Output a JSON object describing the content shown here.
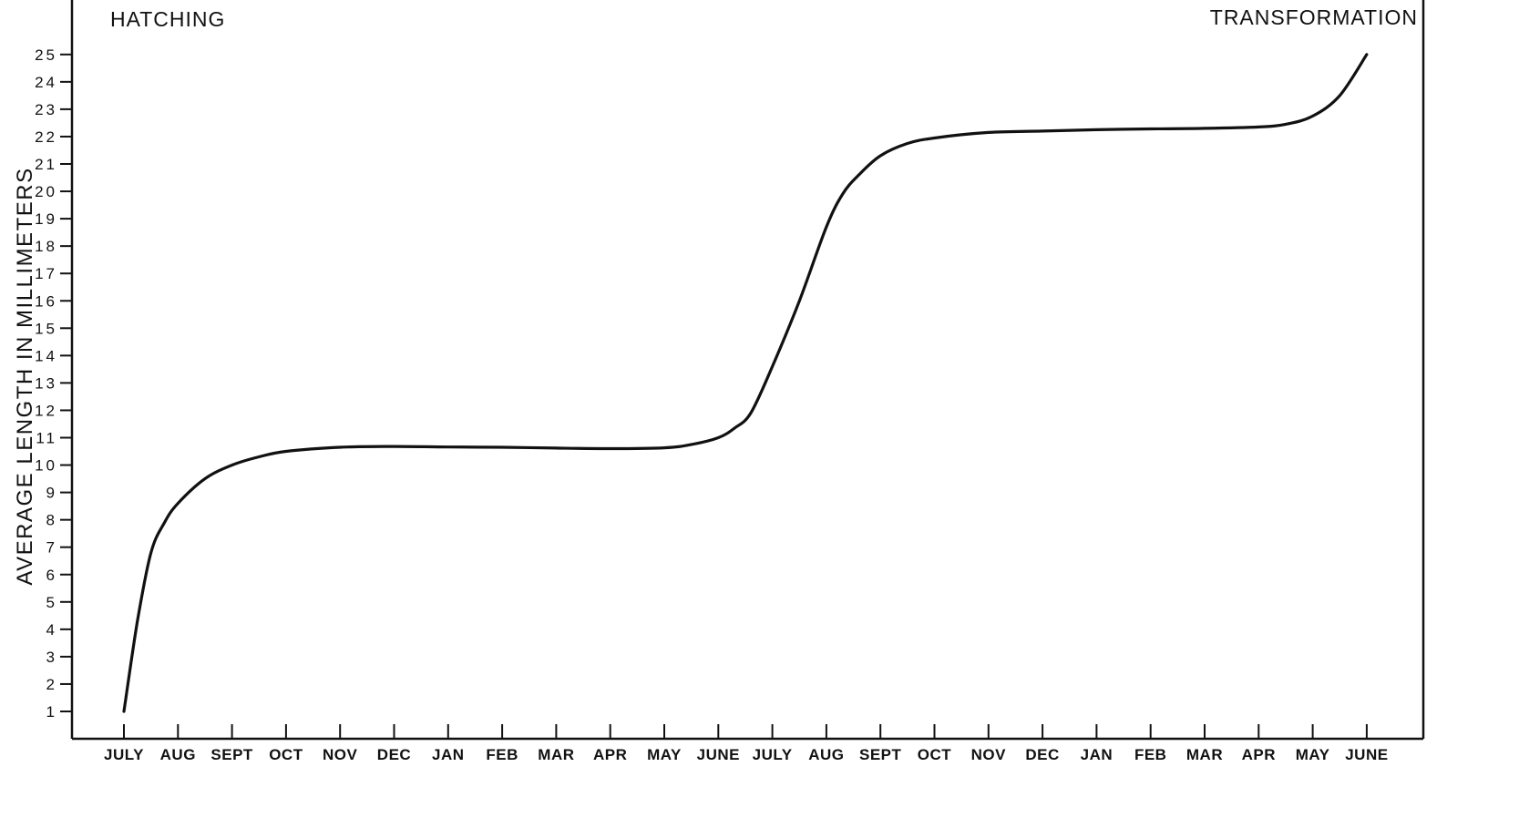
{
  "chart_data": {
    "type": "line",
    "xlabel": "",
    "ylabel": "AVERAGE LENGTH IN MILLIMETERS",
    "ylim": [
      0,
      26
    ],
    "grid": false,
    "x_tick_labels": [
      "JULY",
      "AUG",
      "SEPT",
      "OCT",
      "NOV",
      "DEC",
      "JAN",
      "FEB",
      "MAR",
      "APR",
      "MAY",
      "JUNE",
      "JULY",
      "AUG",
      "SEPT",
      "OCT",
      "NOV",
      "DEC",
      "JAN",
      "FEB",
      "MAR",
      "APR",
      "MAY",
      "JUNE"
    ],
    "y_ticks": [
      1,
      2,
      3,
      4,
      5,
      6,
      7,
      8,
      9,
      10,
      11,
      12,
      13,
      14,
      15,
      16,
      17,
      18,
      19,
      20,
      21,
      22,
      23,
      24,
      25
    ],
    "annotations": [
      {
        "id": "hatching",
        "text": "HATCHING"
      },
      {
        "id": "transformation",
        "text": "TRANSFORMATION"
      }
    ],
    "series": [
      {
        "x": [
          0,
          0.25,
          0.5,
          0.75,
          1,
          1.5,
          2,
          2.5,
          3,
          4,
          5,
          6,
          7,
          8,
          9,
          10,
          10.5,
          11,
          11.3,
          11.6,
          12,
          12.5,
          13,
          13.3,
          13.6,
          14,
          14.5,
          15,
          16,
          17,
          18,
          19,
          20,
          21,
          21.5,
          22,
          22.5,
          23
        ],
        "y": [
          1,
          4.3,
          6.8,
          7.9,
          8.6,
          9.5,
          10.0,
          10.3,
          10.5,
          10.65,
          10.68,
          10.66,
          10.65,
          10.62,
          10.6,
          10.63,
          10.75,
          11.0,
          11.35,
          11.9,
          13.6,
          16.0,
          18.7,
          19.9,
          20.6,
          21.3,
          21.75,
          21.95,
          22.15,
          22.2,
          22.25,
          22.28,
          22.3,
          22.35,
          22.45,
          22.75,
          23.5,
          25
        ]
      }
    ]
  }
}
